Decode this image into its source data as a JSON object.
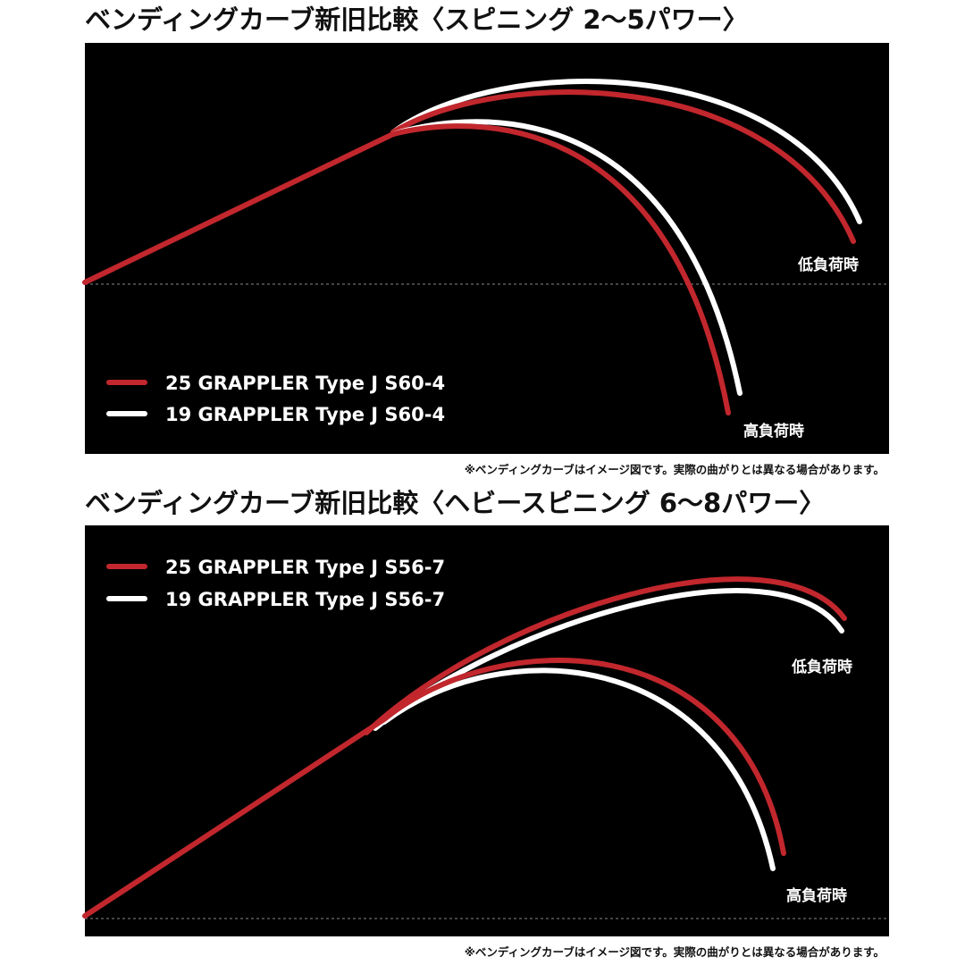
{
  "panels": [
    {
      "title": "ベンディングカーブ新旧比較〈スピニング 2〜5パワー〉",
      "legend": [
        "25 GRAPPLER Type J  S60-4",
        "19 GRAPPLER Type J  S60-4"
      ],
      "low_load": "低負荷時",
      "high_load": "高負荷時",
      "note": "※ベンディングカーブはイメージ図です。実際の曲がりとは異なる場合があります。"
    },
    {
      "title": "ベンディングカーブ新旧比較〈ヘビースピニング 6〜8パワー〉",
      "legend": [
        "25 GRAPPLER Type J  S56-7",
        "19 GRAPPLER Type J  S56-7"
      ],
      "low_load": "低負荷時",
      "high_load": "高負荷時",
      "note": "※ベンディングカーブはイメージ図です。実際の曲がりとは異なる場合があります。"
    }
  ]
}
